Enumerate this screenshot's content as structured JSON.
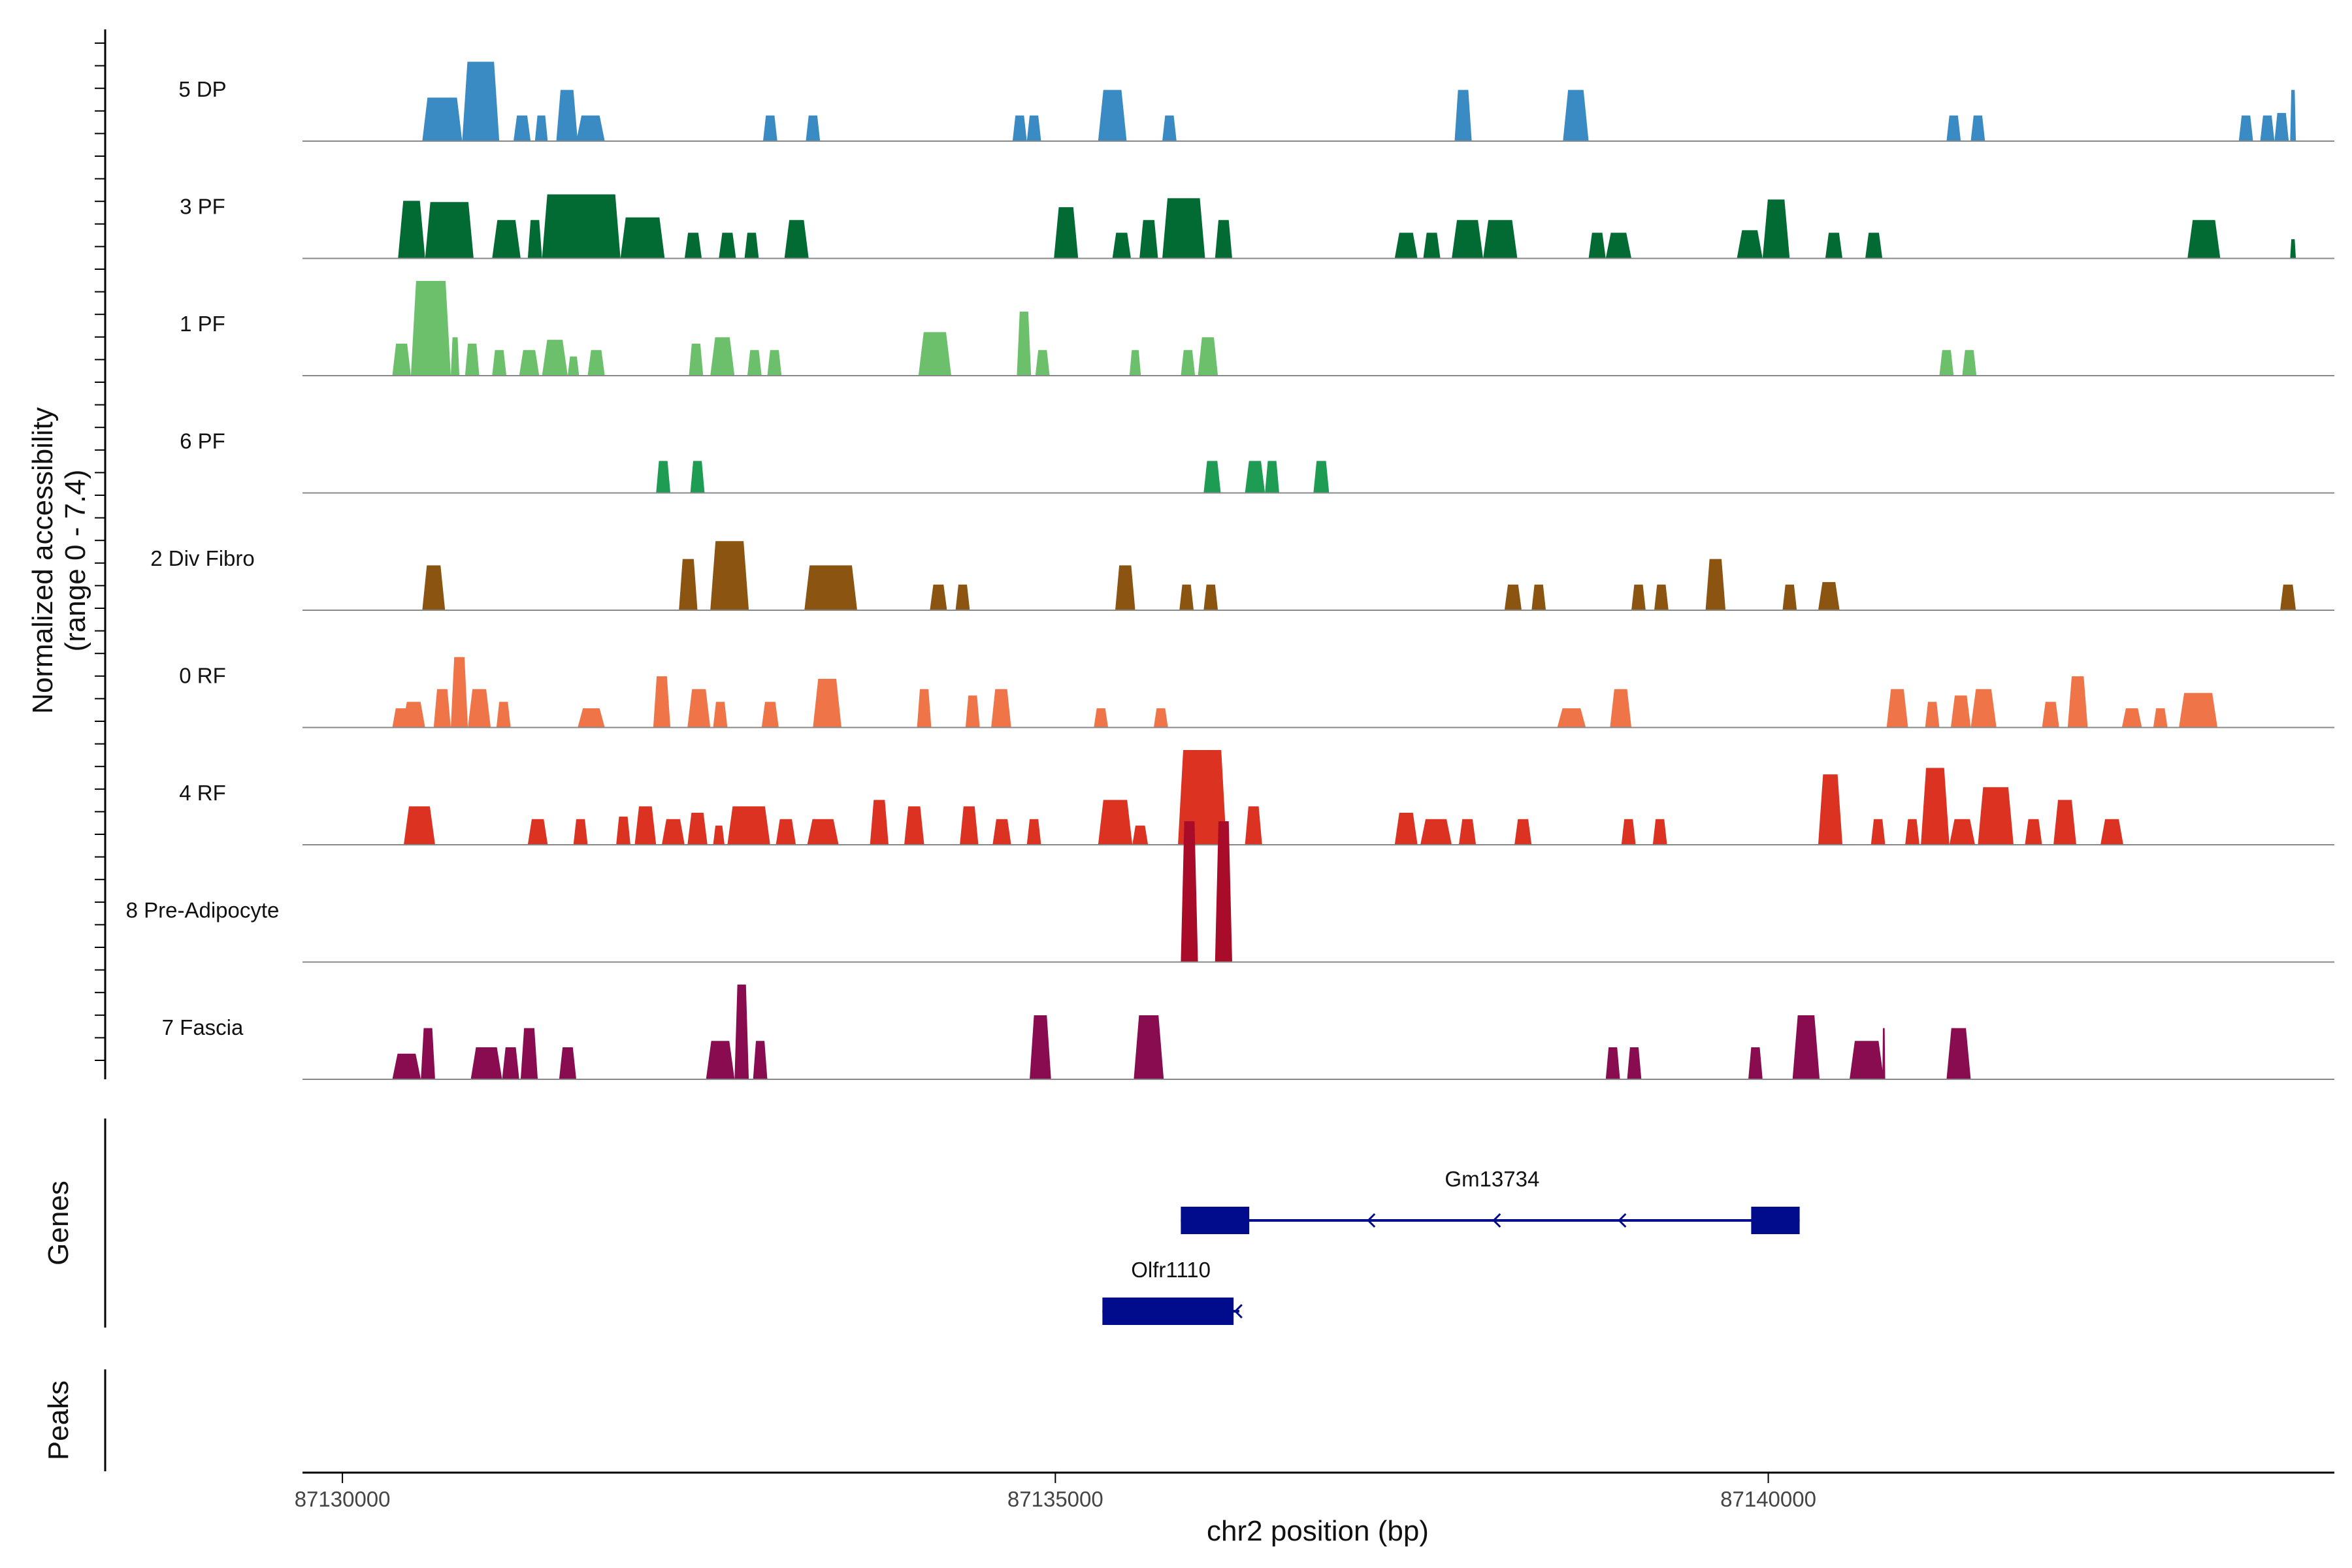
{
  "chart_data": {
    "type": "area",
    "title": "",
    "ylabel_line1": "Normalized accessibility",
    "ylabel_line2": "(range 0 - 7.4)",
    "ylim": [
      0,
      7.4
    ],
    "xlabel": "chr2 position (bp)",
    "xlim": [
      87129720,
      87143970
    ],
    "xticks": [
      87130000,
      87135000,
      87140000
    ],
    "xtick_labels": [
      "87130000",
      "87135000",
      "87140000"
    ],
    "panel_titles": {
      "genes": "Genes",
      "peaks": "Peaks"
    },
    "tracks": [
      {
        "name": "5 DP",
        "color": "#3a8bc4",
        "peaks": [
          [
            87130560,
            87130840,
            3.4
          ],
          [
            87130840,
            87131100,
            6.2
          ],
          [
            87131200,
            87131320,
            2.0
          ],
          [
            87131350,
            87131440,
            2.0
          ],
          [
            87131500,
            87131650,
            4.0
          ],
          [
            87131640,
            87131840,
            2.0
          ],
          [
            87132950,
            87133050,
            2.0
          ],
          [
            87133250,
            87133350,
            2.0
          ],
          [
            87134700,
            87134800,
            2.0
          ],
          [
            87134800,
            87134900,
            2.0
          ],
          [
            87135300,
            87135500,
            4.0
          ],
          [
            87135750,
            87135850,
            2.0
          ],
          [
            87137800,
            87137920,
            4.0
          ],
          [
            87138560,
            87138740,
            4.0
          ],
          [
            87141250,
            87141350,
            2.0
          ],
          [
            87141420,
            87141520,
            2.0
          ],
          [
            87143300,
            87143400,
            2.0
          ],
          [
            87143450,
            87143550,
            2.0
          ],
          [
            87143550,
            87143650,
            2.2
          ],
          [
            87143660,
            87143700,
            4.0
          ]
        ]
      },
      {
        "name": "3 PF",
        "color": "#026b33",
        "peaks": [
          [
            87130390,
            87130580,
            4.5
          ],
          [
            87130580,
            87130920,
            4.4
          ],
          [
            87131050,
            87131250,
            3.0
          ],
          [
            87131300,
            87131400,
            3.0
          ],
          [
            87131400,
            87131950,
            5.0
          ],
          [
            87131950,
            87132260,
            3.2
          ],
          [
            87132400,
            87132520,
            2.0
          ],
          [
            87132640,
            87132760,
            2.0
          ],
          [
            87132820,
            87132920,
            2.0
          ],
          [
            87133100,
            87133270,
            3.0
          ],
          [
            87134990,
            87135160,
            4.0
          ],
          [
            87135400,
            87135530,
            2.0
          ],
          [
            87135590,
            87135720,
            3.0
          ],
          [
            87135750,
            87136050,
            4.7
          ],
          [
            87136120,
            87136240,
            3.0
          ],
          [
            87137380,
            87137540,
            2.0
          ],
          [
            87137580,
            87137700,
            2.0
          ],
          [
            87137780,
            87138000,
            3.0
          ],
          [
            87138000,
            87138240,
            3.0
          ],
          [
            87138740,
            87138860,
            2.0
          ],
          [
            87138860,
            87139040,
            2.0
          ],
          [
            87139780,
            87139960,
            2.2
          ],
          [
            87139960,
            87140150,
            4.6
          ],
          [
            87140400,
            87140520,
            2.0
          ],
          [
            87140680,
            87140800,
            2.0
          ],
          [
            87142940,
            87143170,
            3.0
          ],
          [
            87143660,
            87143700,
            1.5
          ]
        ]
      },
      {
        "name": "1 PF",
        "color": "#6cc06c",
        "peaks": [
          [
            87130350,
            87130480,
            2.5
          ],
          [
            87130480,
            87130760,
            7.4
          ],
          [
            87130760,
            87130820,
            3.0
          ],
          [
            87130860,
            87130960,
            2.5
          ],
          [
            87131050,
            87131150,
            2.0
          ],
          [
            87131240,
            87131380,
            2.0
          ],
          [
            87131400,
            87131580,
            2.8
          ],
          [
            87131580,
            87131660,
            1.5
          ],
          [
            87131720,
            87131840,
            2.0
          ],
          [
            87132430,
            87132530,
            2.5
          ],
          [
            87132580,
            87132750,
            3.0
          ],
          [
            87132840,
            87132940,
            2.0
          ],
          [
            87132980,
            87133080,
            2.0
          ],
          [
            87134040,
            87134270,
            3.4
          ],
          [
            87134730,
            87134830,
            5.0
          ],
          [
            87134860,
            87134960,
            2.0
          ],
          [
            87135520,
            87135600,
            2.0
          ],
          [
            87135880,
            87135980,
            2.0
          ],
          [
            87136000,
            87136140,
            3.0
          ],
          [
            87141200,
            87141300,
            2.0
          ],
          [
            87141360,
            87141460,
            2.0
          ]
        ]
      },
      {
        "name": "6 PF",
        "color": "#1e9c54",
        "peaks": [
          [
            87132200,
            87132300,
            2.5
          ],
          [
            87132440,
            87132540,
            2.5
          ],
          [
            87136040,
            87136160,
            2.5
          ],
          [
            87136330,
            87136470,
            2.5
          ],
          [
            87136470,
            87136570,
            2.5
          ],
          [
            87136810,
            87136920,
            2.5
          ]
        ]
      },
      {
        "name": "2 Div Fibro",
        "color": "#8b5411",
        "peaks": [
          [
            87130560,
            87130720,
            3.5
          ],
          [
            87132360,
            87132490,
            4.0
          ],
          [
            87132580,
            87132850,
            5.4
          ],
          [
            87133240,
            87133610,
            3.5
          ],
          [
            87134120,
            87134240,
            2.0
          ],
          [
            87134300,
            87134400,
            2.0
          ],
          [
            87135420,
            87135560,
            3.5
          ],
          [
            87135870,
            87135970,
            2.0
          ],
          [
            87136040,
            87136140,
            2.0
          ],
          [
            87138150,
            87138270,
            2.0
          ],
          [
            87138340,
            87138440,
            2.0
          ],
          [
            87139040,
            87139140,
            2.0
          ],
          [
            87139200,
            87139300,
            2.0
          ],
          [
            87139560,
            87139700,
            4.0
          ],
          [
            87140100,
            87140200,
            2.0
          ],
          [
            87140350,
            87140500,
            2.2
          ],
          [
            87143590,
            87143700,
            2.0
          ]
        ]
      },
      {
        "name": "0 RF",
        "color": "#ef7548",
        "peaks": [
          [
            87130350,
            87130470,
            1.5
          ],
          [
            87130420,
            87130580,
            2.0
          ],
          [
            87130640,
            87130760,
            3.0
          ],
          [
            87130760,
            87130880,
            5.5
          ],
          [
            87130880,
            87131040,
            3.0
          ],
          [
            87131080,
            87131180,
            2.0
          ],
          [
            87131650,
            87131840,
            1.5
          ],
          [
            87132180,
            87132300,
            4.0
          ],
          [
            87132420,
            87132580,
            3.0
          ],
          [
            87132600,
            87132700,
            2.0
          ],
          [
            87132940,
            87133060,
            2.0
          ],
          [
            87133300,
            87133500,
            3.8
          ],
          [
            87134030,
            87134130,
            3.0
          ],
          [
            87134370,
            87134470,
            2.5
          ],
          [
            87134550,
            87134690,
            3.0
          ],
          [
            87135270,
            87135370,
            1.5
          ],
          [
            87135690,
            87135790,
            1.5
          ],
          [
            87138520,
            87138720,
            1.5
          ],
          [
            87138890,
            87139040,
            3.0
          ],
          [
            87140830,
            87140980,
            3.0
          ],
          [
            87141100,
            87141200,
            2.0
          ],
          [
            87141280,
            87141420,
            2.5
          ],
          [
            87141420,
            87141600,
            3.0
          ],
          [
            87141920,
            87142040,
            2.0
          ],
          [
            87142100,
            87142240,
            4.0
          ],
          [
            87142480,
            87142620,
            1.5
          ],
          [
            87142700,
            87142800,
            1.5
          ],
          [
            87142880,
            87143150,
            2.7
          ]
        ]
      },
      {
        "name": "4 RF",
        "color": "#dc3222",
        "peaks": [
          [
            87130430,
            87130650,
            3.0
          ],
          [
            87131300,
            87131440,
            2.0
          ],
          [
            87131620,
            87131720,
            2.0
          ],
          [
            87131920,
            87132020,
            2.2
          ],
          [
            87132050,
            87132200,
            3.0
          ],
          [
            87132240,
            87132400,
            2.0
          ],
          [
            87132420,
            87132560,
            2.5
          ],
          [
            87132600,
            87132680,
            1.5
          ],
          [
            87132700,
            87133000,
            3.0
          ],
          [
            87133040,
            87133180,
            2.0
          ],
          [
            87133260,
            87133480,
            2.0
          ],
          [
            87133700,
            87133830,
            3.5
          ],
          [
            87133940,
            87134080,
            3.0
          ],
          [
            87134330,
            87134460,
            3.0
          ],
          [
            87134560,
            87134690,
            2.0
          ],
          [
            87134800,
            87134900,
            2.0
          ],
          [
            87135300,
            87135540,
            3.5
          ],
          [
            87135540,
            87135650,
            1.5
          ],
          [
            87135860,
            87136200,
            7.4
          ],
          [
            87136330,
            87136450,
            3.0
          ],
          [
            87137380,
            87137540,
            2.5
          ],
          [
            87137560,
            87137780,
            2.0
          ],
          [
            87137830,
            87137950,
            2.0
          ],
          [
            87138220,
            87138340,
            2.0
          ],
          [
            87138970,
            87139070,
            2.0
          ],
          [
            87139190,
            87139290,
            2.0
          ],
          [
            87140350,
            87140520,
            5.5
          ],
          [
            87140720,
            87140820,
            2.0
          ],
          [
            87140960,
            87141060,
            2.0
          ],
          [
            87141070,
            87141270,
            6.0
          ],
          [
            87141270,
            87141450,
            2.0
          ],
          [
            87141470,
            87141720,
            4.5
          ],
          [
            87141800,
            87141920,
            2.0
          ],
          [
            87142000,
            87142160,
            3.5
          ],
          [
            87142330,
            87142490,
            2.0
          ]
        ]
      },
      {
        "name": "8 Pre-Adipocyte",
        "color": "#a90c28",
        "peaks": [
          [
            87135880,
            87136000,
            11.0
          ],
          [
            87136120,
            87136240,
            11.0
          ]
        ]
      },
      {
        "name": "7 Fascia",
        "color": "#8a0c50",
        "peaks": [
          [
            87130350,
            87130550,
            2.0
          ],
          [
            87130550,
            87130650,
            4.0
          ],
          [
            87130900,
            87131120,
            2.5
          ],
          [
            87131120,
            87131240,
            2.5
          ],
          [
            87131250,
            87131370,
            4.0
          ],
          [
            87131520,
            87131640,
            2.5
          ],
          [
            87132550,
            87132750,
            3.0
          ],
          [
            87132750,
            87132850,
            7.4
          ],
          [
            87132880,
            87132980,
            3.0
          ],
          [
            87134820,
            87134970,
            5.0
          ],
          [
            87135550,
            87135760,
            5.0
          ],
          [
            87138860,
            87138960,
            2.5
          ],
          [
            87139010,
            87139110,
            2.5
          ],
          [
            87139860,
            87139960,
            2.5
          ],
          [
            87140170,
            87140360,
            5.0
          ],
          [
            87140570,
            87140810,
            3.0
          ],
          [
            87140800,
            87140820,
            4.0
          ],
          [
            87141250,
            87141420,
            4.0
          ]
        ]
      }
    ],
    "genes": [
      {
        "name": "Gm13734",
        "start": 87135880,
        "end": 87140220,
        "strand": "-",
        "exons": [
          [
            87135880,
            87136360
          ],
          [
            87139880,
            87140220
          ]
        ]
      },
      {
        "name": "Olfr1110",
        "start": 87135330,
        "end": 87136290,
        "strand": "-",
        "exons": [
          [
            87135330,
            87136250
          ]
        ]
      }
    ],
    "peaks_track": []
  }
}
